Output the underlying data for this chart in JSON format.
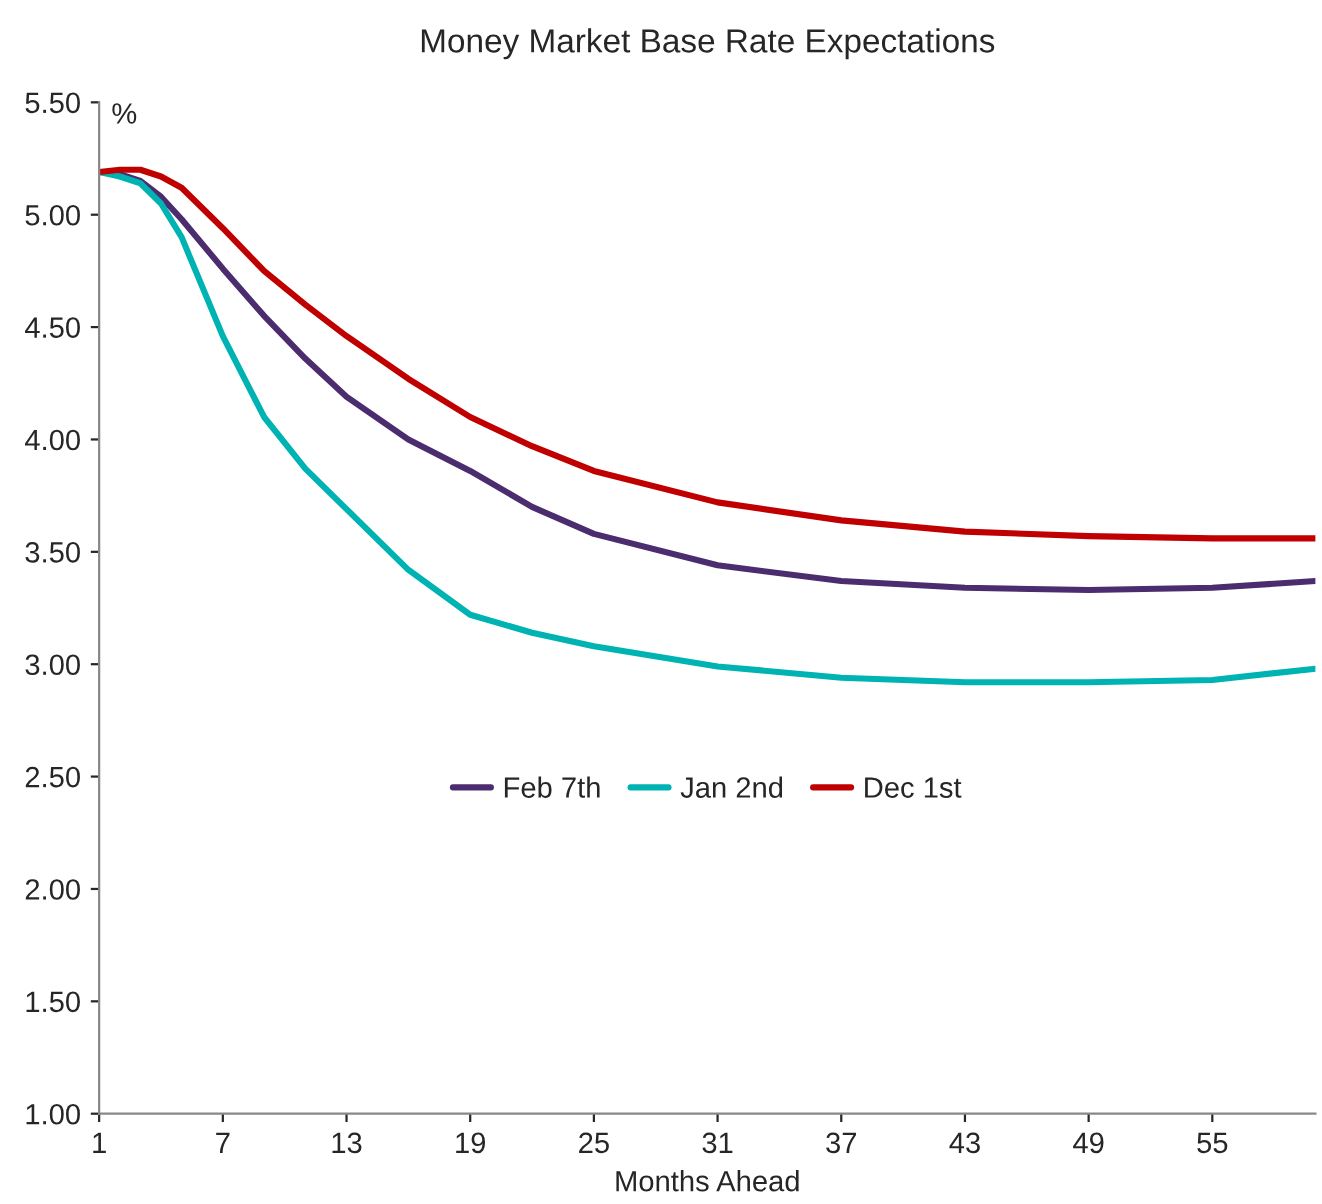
{
  "chart_data": {
    "type": "line",
    "title": "Money Market Base Rate Expectations",
    "xlabel": "Months Ahead",
    "annotations": [
      "%"
    ],
    "x": [
      1,
      2,
      3,
      4,
      5,
      7,
      9,
      11,
      13,
      16,
      19,
      22,
      25,
      31,
      37,
      43,
      49,
      55,
      60
    ],
    "series": [
      {
        "name": "Feb 7th",
        "color": "#4b2c6e",
        "values": [
          5.19,
          5.18,
          5.15,
          5.08,
          4.98,
          4.76,
          4.55,
          4.36,
          4.19,
          4.0,
          3.86,
          3.7,
          3.58,
          3.44,
          3.37,
          3.34,
          3.33,
          3.34,
          3.37
        ]
      },
      {
        "name": "Jan 2nd",
        "color": "#00b3b3",
        "values": [
          5.19,
          5.17,
          5.14,
          5.05,
          4.9,
          4.46,
          4.1,
          3.87,
          3.69,
          3.42,
          3.22,
          3.14,
          3.08,
          2.99,
          2.94,
          2.92,
          2.92,
          2.93,
          2.98
        ]
      },
      {
        "name": "Dec 1st",
        "color": "#c00000",
        "values": [
          5.19,
          5.2,
          5.2,
          5.17,
          5.12,
          4.94,
          4.75,
          4.6,
          4.46,
          4.27,
          4.1,
          3.97,
          3.86,
          3.72,
          3.64,
          3.59,
          3.57,
          3.56,
          3.56
        ]
      }
    ],
    "xlim": [
      1,
      60
    ],
    "xticks": [
      1,
      7,
      13,
      19,
      25,
      31,
      37,
      43,
      49,
      55
    ],
    "ylim": [
      1.0,
      5.5
    ],
    "yticks": [
      {
        "value": 1.0,
        "label": "1.00"
      },
      {
        "value": 1.5,
        "label": "1.50"
      },
      {
        "value": 2.0,
        "label": "2.00"
      },
      {
        "value": 2.5,
        "label": "2.50"
      },
      {
        "value": 3.0,
        "label": "3.00"
      },
      {
        "value": 3.5,
        "label": "3.50"
      },
      {
        "value": 4.0,
        "label": "4.00"
      },
      {
        "value": 4.5,
        "label": "4.50"
      },
      {
        "value": 5.0,
        "label": "5.00"
      },
      {
        "value": 5.5,
        "label": "5.50"
      }
    ],
    "grid": false,
    "legend": "center",
    "marker": "none",
    "line_style": "solid"
  }
}
